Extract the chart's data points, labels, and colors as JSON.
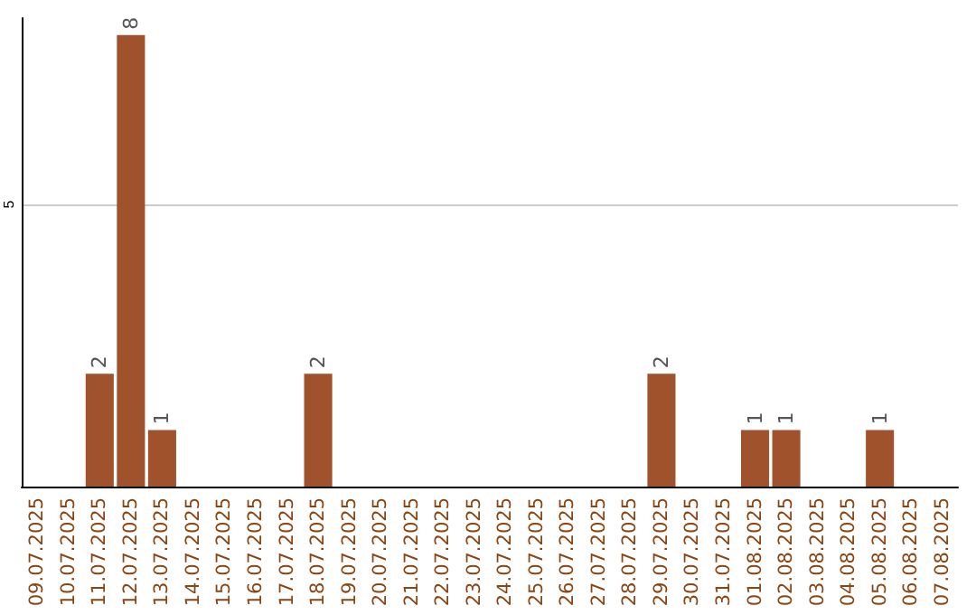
{
  "chart_data": {
    "type": "bar",
    "categories": [
      "09.07.2025",
      "10.07.2025",
      "11.07.2025",
      "12.07.2025",
      "13.07.2025",
      "14.07.2025",
      "15.07.2025",
      "16.07.2025",
      "17.07.2025",
      "18.07.2025",
      "19.07.2025",
      "20.07.2025",
      "21.07.2025",
      "22.07.2025",
      "23.07.2025",
      "24.07.2025",
      "25.07.2025",
      "26.07.2025",
      "27.07.2025",
      "28.07.2025",
      "29.07.2025",
      "30.07.2025",
      "31.07.2025",
      "01.08.2025",
      "02.08.2025",
      "03.08.2025",
      "04.08.2025",
      "05.08.2025",
      "06.08.2025",
      "07.08.2025"
    ],
    "values": [
      0,
      0,
      2,
      8,
      1,
      0,
      0,
      0,
      0,
      2,
      0,
      0,
      0,
      0,
      0,
      0,
      0,
      0,
      0,
      0,
      2,
      0,
      0,
      1,
      1,
      0,
      0,
      1,
      0,
      0
    ],
    "value_labels": [
      null,
      null,
      "2",
      "8",
      "1",
      null,
      null,
      null,
      null,
      "2",
      null,
      null,
      null,
      null,
      null,
      null,
      null,
      null,
      null,
      null,
      "2",
      null,
      null,
      "1",
      "1",
      null,
      null,
      "1",
      null,
      null
    ],
    "color": "#a0522d",
    "ylim": [
      0,
      8.3
    ],
    "yticks": [
      5
    ],
    "grid": "y"
  }
}
